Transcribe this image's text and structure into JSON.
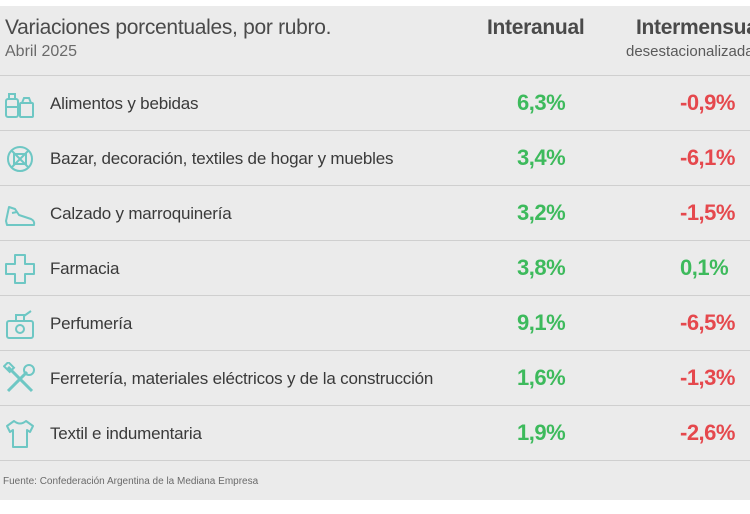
{
  "header": {
    "title": "Variaciones porcentuales, por rubro.",
    "subtitle": "Abril 2025",
    "col_interanual": "Interanual",
    "col_intermensual": "Intermensual",
    "col_intermensual_sub": "desestacionalizada"
  },
  "colors": {
    "positive": "#3dba5c",
    "negative": "#e5484d",
    "icon": "#6ec7c4"
  },
  "chart_data": {
    "type": "table",
    "title": "Variaciones porcentuales, por rubro.",
    "subtitle": "Abril 2025",
    "columns": [
      "Interanual",
      "Intermensual desestacionalizada"
    ],
    "rows": [
      {
        "icon": "grocery-icon",
        "category": "Alimentos y bebidas",
        "interanual": "6,3%",
        "intermensual": "-0,9%",
        "interanual_value": 6.3,
        "intermensual_value": -0.9
      },
      {
        "icon": "home-decor-icon",
        "category": "Bazar, decoración, textiles de hogar y muebles",
        "interanual": "3,4%",
        "intermensual": "-6,1%",
        "interanual_value": 3.4,
        "intermensual_value": -6.1
      },
      {
        "icon": "shoe-icon",
        "category": "Calzado y marroquinería",
        "interanual": "3,2%",
        "intermensual": "-1,5%",
        "interanual_value": 3.2,
        "intermensual_value": -1.5
      },
      {
        "icon": "pharmacy-cross-icon",
        "category": "Farmacia",
        "interanual": "3,8%",
        "intermensual": "0,1%",
        "interanual_value": 3.8,
        "intermensual_value": 0.1
      },
      {
        "icon": "perfume-icon",
        "category": "Perfumería",
        "interanual": "9,1%",
        "intermensual": "-6,5%",
        "interanual_value": 9.1,
        "intermensual_value": -6.5
      },
      {
        "icon": "tools-icon",
        "category": "Ferretería, materiales eléctricos y de la construcción",
        "interanual": "1,6%",
        "intermensual": "-1,3%",
        "interanual_value": 1.6,
        "intermensual_value": -1.3
      },
      {
        "icon": "shirt-icon",
        "category": "Textil e indumentaria",
        "interanual": "1,9%",
        "intermensual": "-2,6%",
        "interanual_value": 1.9,
        "intermensual_value": -2.6
      }
    ]
  },
  "source": "Fuente: Confederación Argentina de la Mediana Empresa"
}
